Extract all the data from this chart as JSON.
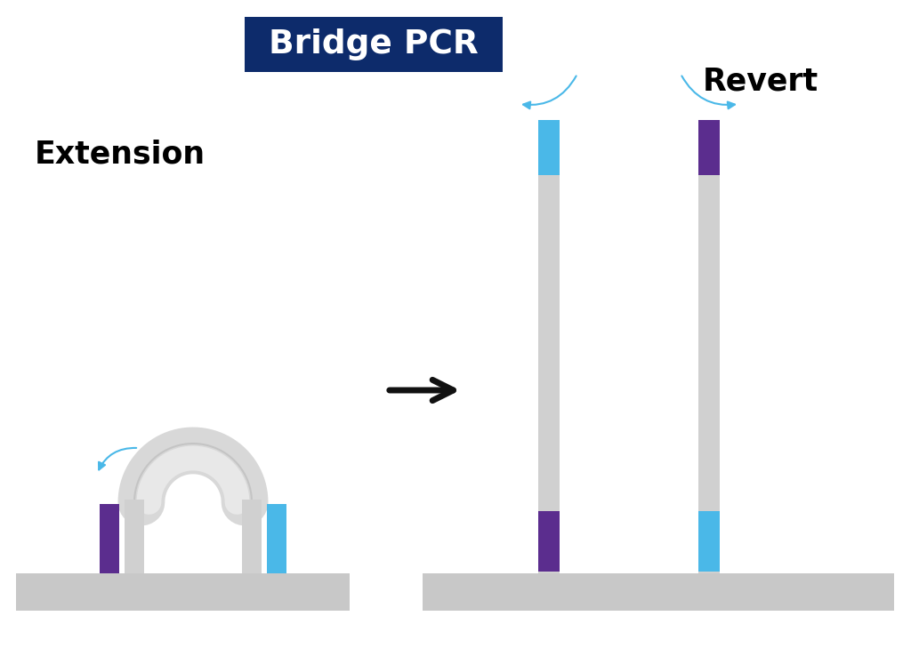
{
  "title": "Bridge PCR",
  "title_bg": "#0d2b6b",
  "title_text_color": "#ffffff",
  "label_extension": "Extension",
  "label_revert": "Revert",
  "color_purple": "#5b2d8e",
  "color_blue": "#4ab8e8",
  "color_gray_strand": "#d0d0d0",
  "color_flowcell": "#c8c8c8",
  "color_arrow": "#111111",
  "color_curve_arrow": "#4ab8e8",
  "bg_color": "#ffffff"
}
